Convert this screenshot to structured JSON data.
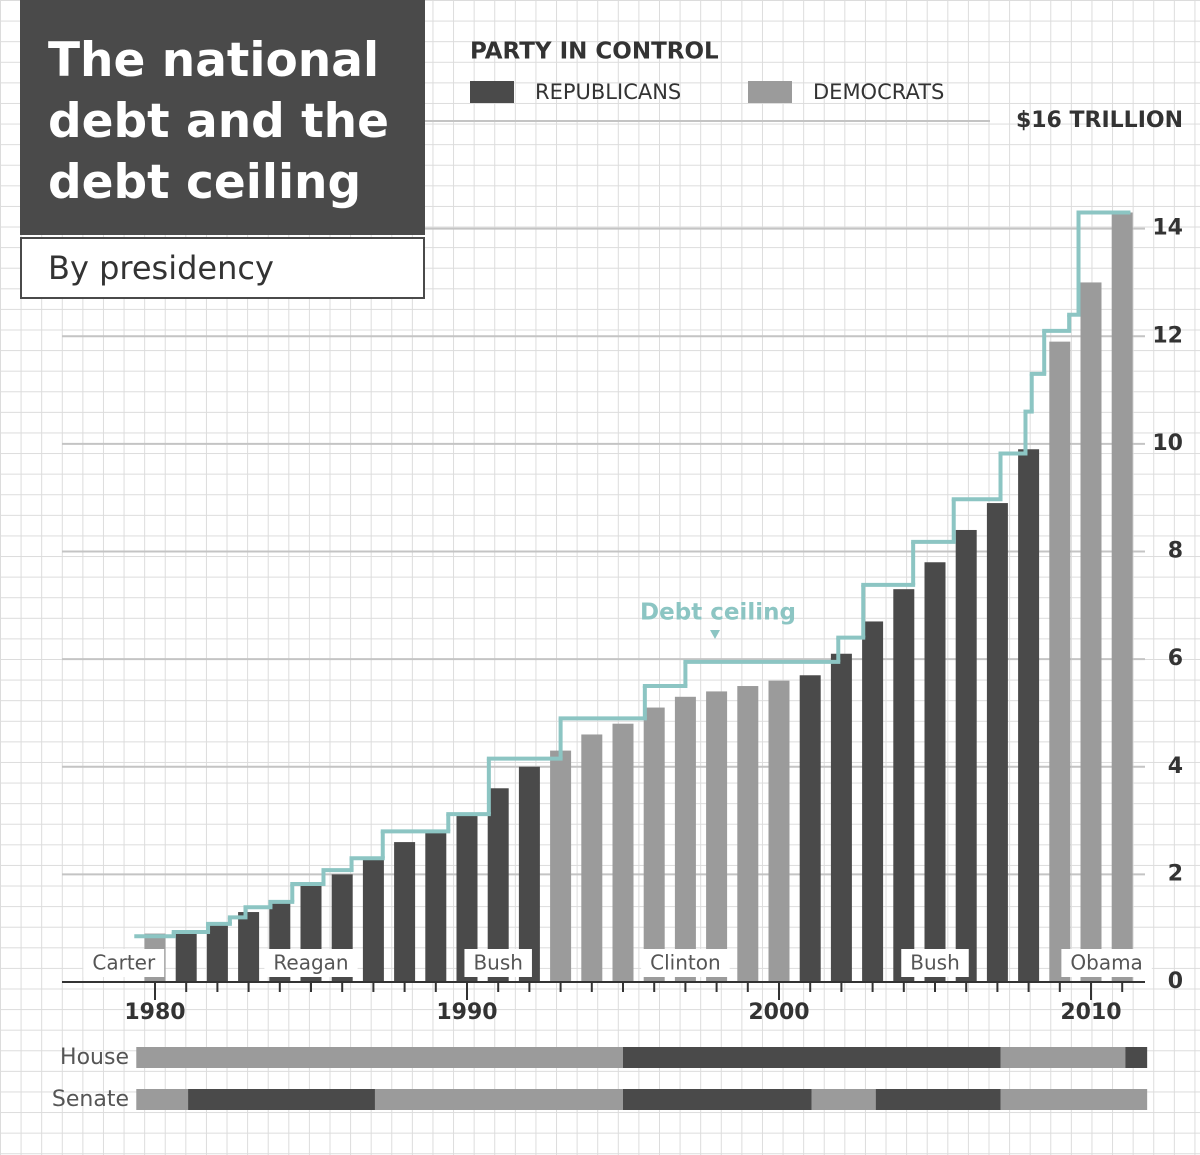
{
  "chart_data": {
    "type": "bar",
    "title": "The national debt and the debt ceiling",
    "subtitle": "By presidency",
    "legend_title": "PARTY IN CONTROL",
    "x": [
      1980,
      1981,
      1982,
      1983,
      1984,
      1985,
      1986,
      1987,
      1988,
      1989,
      1990,
      1991,
      1992,
      1993,
      1994,
      1995,
      1996,
      1997,
      1998,
      1999,
      2000,
      2001,
      2002,
      2003,
      2004,
      2005,
      2006,
      2007,
      2008,
      2009,
      2010,
      2011
    ],
    "series": [
      {
        "name": "REPUBLICANS",
        "color": "#4a4a4a",
        "values": [
          null,
          0.95,
          1.1,
          1.3,
          1.5,
          1.8,
          2.0,
          2.3,
          2.6,
          2.8,
          3.1,
          3.6,
          4.0,
          null,
          null,
          null,
          null,
          null,
          null,
          null,
          null,
          5.7,
          6.1,
          6.7,
          7.3,
          7.8,
          8.4,
          8.9,
          9.9,
          null,
          null,
          null
        ]
      },
      {
        "name": "DEMOCRATS",
        "color": "#9b9b9b",
        "values": [
          0.9,
          null,
          null,
          null,
          null,
          null,
          null,
          null,
          null,
          null,
          null,
          null,
          null,
          4.3,
          4.6,
          4.8,
          5.1,
          5.3,
          5.4,
          5.5,
          5.6,
          null,
          null,
          null,
          null,
          null,
          null,
          null,
          null,
          11.9,
          13.0,
          14.3
        ]
      }
    ],
    "debt_ceiling": {
      "name": "Debt ceiling",
      "color": "#8cc5c3",
      "x": [
        1979.4,
        1980.6,
        1981.7,
        1982.4,
        1982.9,
        1983.7,
        1984.4,
        1985.4,
        1986.3,
        1987.3,
        1989.4,
        1990.7,
        1993.0,
        1995.7,
        1997.0,
        2001.9,
        2002.7,
        2004.3,
        2005.6,
        2007.1,
        2007.9,
        2008.1,
        2008.5,
        2009.3,
        2009.6,
        2011.2
      ],
      "values": [
        0.85,
        0.93,
        1.08,
        1.2,
        1.39,
        1.49,
        1.82,
        2.08,
        2.3,
        2.8,
        3.12,
        4.15,
        4.9,
        5.5,
        5.95,
        6.4,
        7.38,
        8.18,
        8.97,
        9.82,
        10.6,
        11.3,
        12.1,
        12.4,
        14.3,
        14.3
      ]
    },
    "presidents": [
      {
        "name": "Carter",
        "start": 1977,
        "end": 1981
      },
      {
        "name": "Reagan",
        "start": 1981,
        "end": 1989
      },
      {
        "name": "Bush",
        "start": 1989,
        "end": 1993
      },
      {
        "name": "Clinton",
        "start": 1993,
        "end": 2001
      },
      {
        "name": "Bush",
        "start": 2001,
        "end": 2009
      },
      {
        "name": "Obama",
        "start": 2009,
        "end": 2013
      }
    ],
    "congress": [
      {
        "name": "House",
        "periods": [
          {
            "start": 1979.4,
            "end": 1995.0,
            "color": "#9b9b9b"
          },
          {
            "start": 1995.0,
            "end": 2007.1,
            "color": "#4a4a4a"
          },
          {
            "start": 2007.1,
            "end": 2011.1,
            "color": "#9b9b9b"
          },
          {
            "start": 2011.1,
            "end": 2011.8,
            "color": "#4a4a4a"
          }
        ]
      },
      {
        "name": "Senate",
        "periods": [
          {
            "start": 1979.4,
            "end": 1981.06,
            "color": "#9b9b9b"
          },
          {
            "start": 1981.06,
            "end": 1987.05,
            "color": "#4a4a4a"
          },
          {
            "start": 1987.05,
            "end": 1995.0,
            "color": "#9b9b9b"
          },
          {
            "start": 1995.0,
            "end": 2001.05,
            "color": "#4a4a4a"
          },
          {
            "start": 2001.05,
            "end": 2003.1,
            "color": "#9b9b9b"
          },
          {
            "start": 2003.1,
            "end": 2007.1,
            "color": "#4a4a4a"
          },
          {
            "start": 2007.1,
            "end": 2011.8,
            "color": "#9b9b9b"
          }
        ]
      }
    ],
    "xlim": [
      1977,
      2012
    ],
    "xticks": [
      1980,
      1990,
      2000,
      2010
    ],
    "ylim": [
      0,
      16
    ],
    "yticks": [
      0,
      2,
      4,
      6,
      8,
      10,
      12,
      14,
      {
        "value": 16,
        "label": "$16 TRILLION"
      }
    ],
    "grid": true
  }
}
